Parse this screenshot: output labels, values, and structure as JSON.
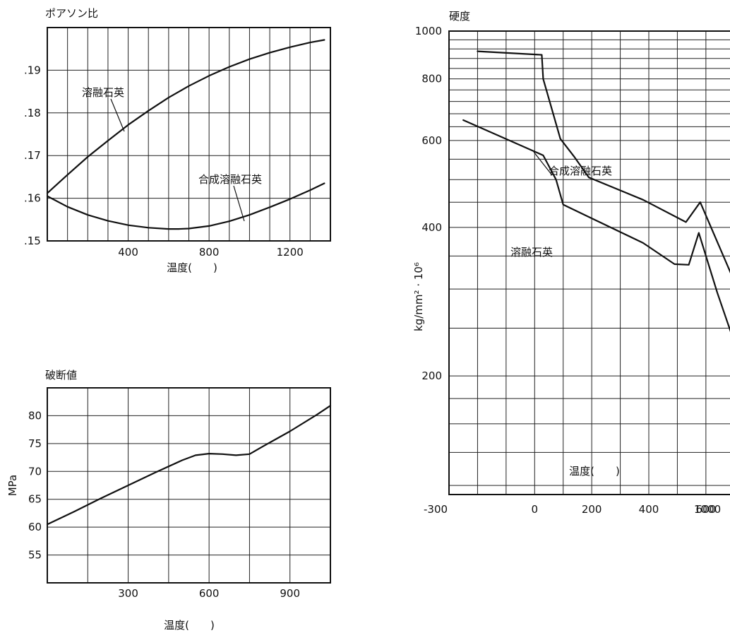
{
  "chart_data": [
    {
      "type": "line",
      "title": "ポアソン比",
      "xlabel": "温度(　　)",
      "ylabel": "",
      "xlim": [
        0,
        1400
      ],
      "ylim": [
        0.15,
        0.2
      ],
      "x_ticks": [
        400,
        800,
        1200
      ],
      "x_tick_labels": [
        "400",
        "800",
        "1200"
      ],
      "y_ticks": [
        0.15,
        0.16,
        0.17,
        0.18,
        0.19
      ],
      "y_tick_labels": [
        ".15",
        ".16",
        ".17",
        ".18",
        ".19"
      ],
      "grid": true,
      "series": [
        {
          "name": "溶融石英",
          "x": [
            0,
            100,
            200,
            300,
            400,
            500,
            600,
            700,
            800,
            900,
            1000,
            1100,
            1200,
            1300,
            1370
          ],
          "values": [
            0.1612,
            0.1655,
            0.1697,
            0.1735,
            0.1772,
            0.1805,
            0.1836,
            0.1863,
            0.1887,
            0.1908,
            0.1926,
            0.1941,
            0.1954,
            0.1965,
            0.1971
          ]
        },
        {
          "name": "合成溶融石英",
          "x": [
            0,
            100,
            200,
            300,
            400,
            500,
            600,
            650,
            700,
            800,
            900,
            1000,
            1100,
            1200,
            1300,
            1370
          ],
          "values": [
            0.1605,
            0.158,
            0.1561,
            0.1547,
            0.1537,
            0.1531,
            0.1528,
            0.1528,
            0.1529,
            0.1535,
            0.1546,
            0.1561,
            0.1579,
            0.1598,
            0.1619,
            0.1635
          ]
        }
      ]
    },
    {
      "type": "line",
      "title": "破断値",
      "xlabel": "温度(　　)",
      "ylabel": "MPa",
      "xlim": [
        0,
        1050
      ],
      "ylim": [
        50,
        85
      ],
      "x_ticks": [
        300,
        600,
        900
      ],
      "x_tick_labels": [
        "300",
        "600",
        "900"
      ],
      "y_ticks": [
        55,
        60,
        65,
        70,
        75,
        80
      ],
      "y_tick_labels": [
        "55",
        "60",
        "65",
        "70",
        "75",
        "80"
      ],
      "grid": true,
      "series": [
        {
          "name": "",
          "x": [
            0,
            100,
            200,
            300,
            400,
            500,
            550,
            600,
            650,
            700,
            750,
            800,
            900,
            1000,
            1050
          ],
          "values": [
            60.5,
            62.8,
            65.2,
            67.5,
            69.8,
            72.0,
            72.9,
            73.2,
            73.1,
            72.9,
            73.1,
            74.5,
            77.2,
            80.2,
            81.8
          ]
        }
      ]
    },
    {
      "type": "line",
      "title": "硬度",
      "xlabel": "温度(　　)",
      "ylabel": "kg/mm² · 10⁶",
      "y_scale": "log",
      "xlim": [
        -300,
        1100
      ],
      "ylim": [
        115,
        1000
      ],
      "x_ticks": [
        -300,
        0,
        200,
        400,
        600,
        800,
        1000
      ],
      "x_tick_labels": [
        "-300",
        "0",
        "200",
        "400",
        "600",
        "800",
        "1000"
      ],
      "y_ticks": [
        200,
        400,
        600,
        800,
        1000
      ],
      "y_tick_labels": [
        "200",
        "400",
        "600",
        "800",
        "1000"
      ],
      "grid": true,
      "series": [
        {
          "name": "合成溶融石英",
          "x": [
            -200,
            25,
            30,
            90,
            140,
            190,
            380,
            530,
            580,
            760
          ],
          "values": [
            910,
            895,
            800,
            605,
            555,
            505,
            455,
            410,
            450,
            258
          ]
        },
        {
          "name": "溶融石英",
          "x": [
            -250,
            30,
            75,
            100,
            190,
            380,
            490,
            540,
            575,
            640,
            740,
            850
          ],
          "values": [
            660,
            560,
            500,
            445,
            420,
            372,
            337,
            336,
            390,
            295,
            200,
            142
          ]
        }
      ]
    }
  ]
}
